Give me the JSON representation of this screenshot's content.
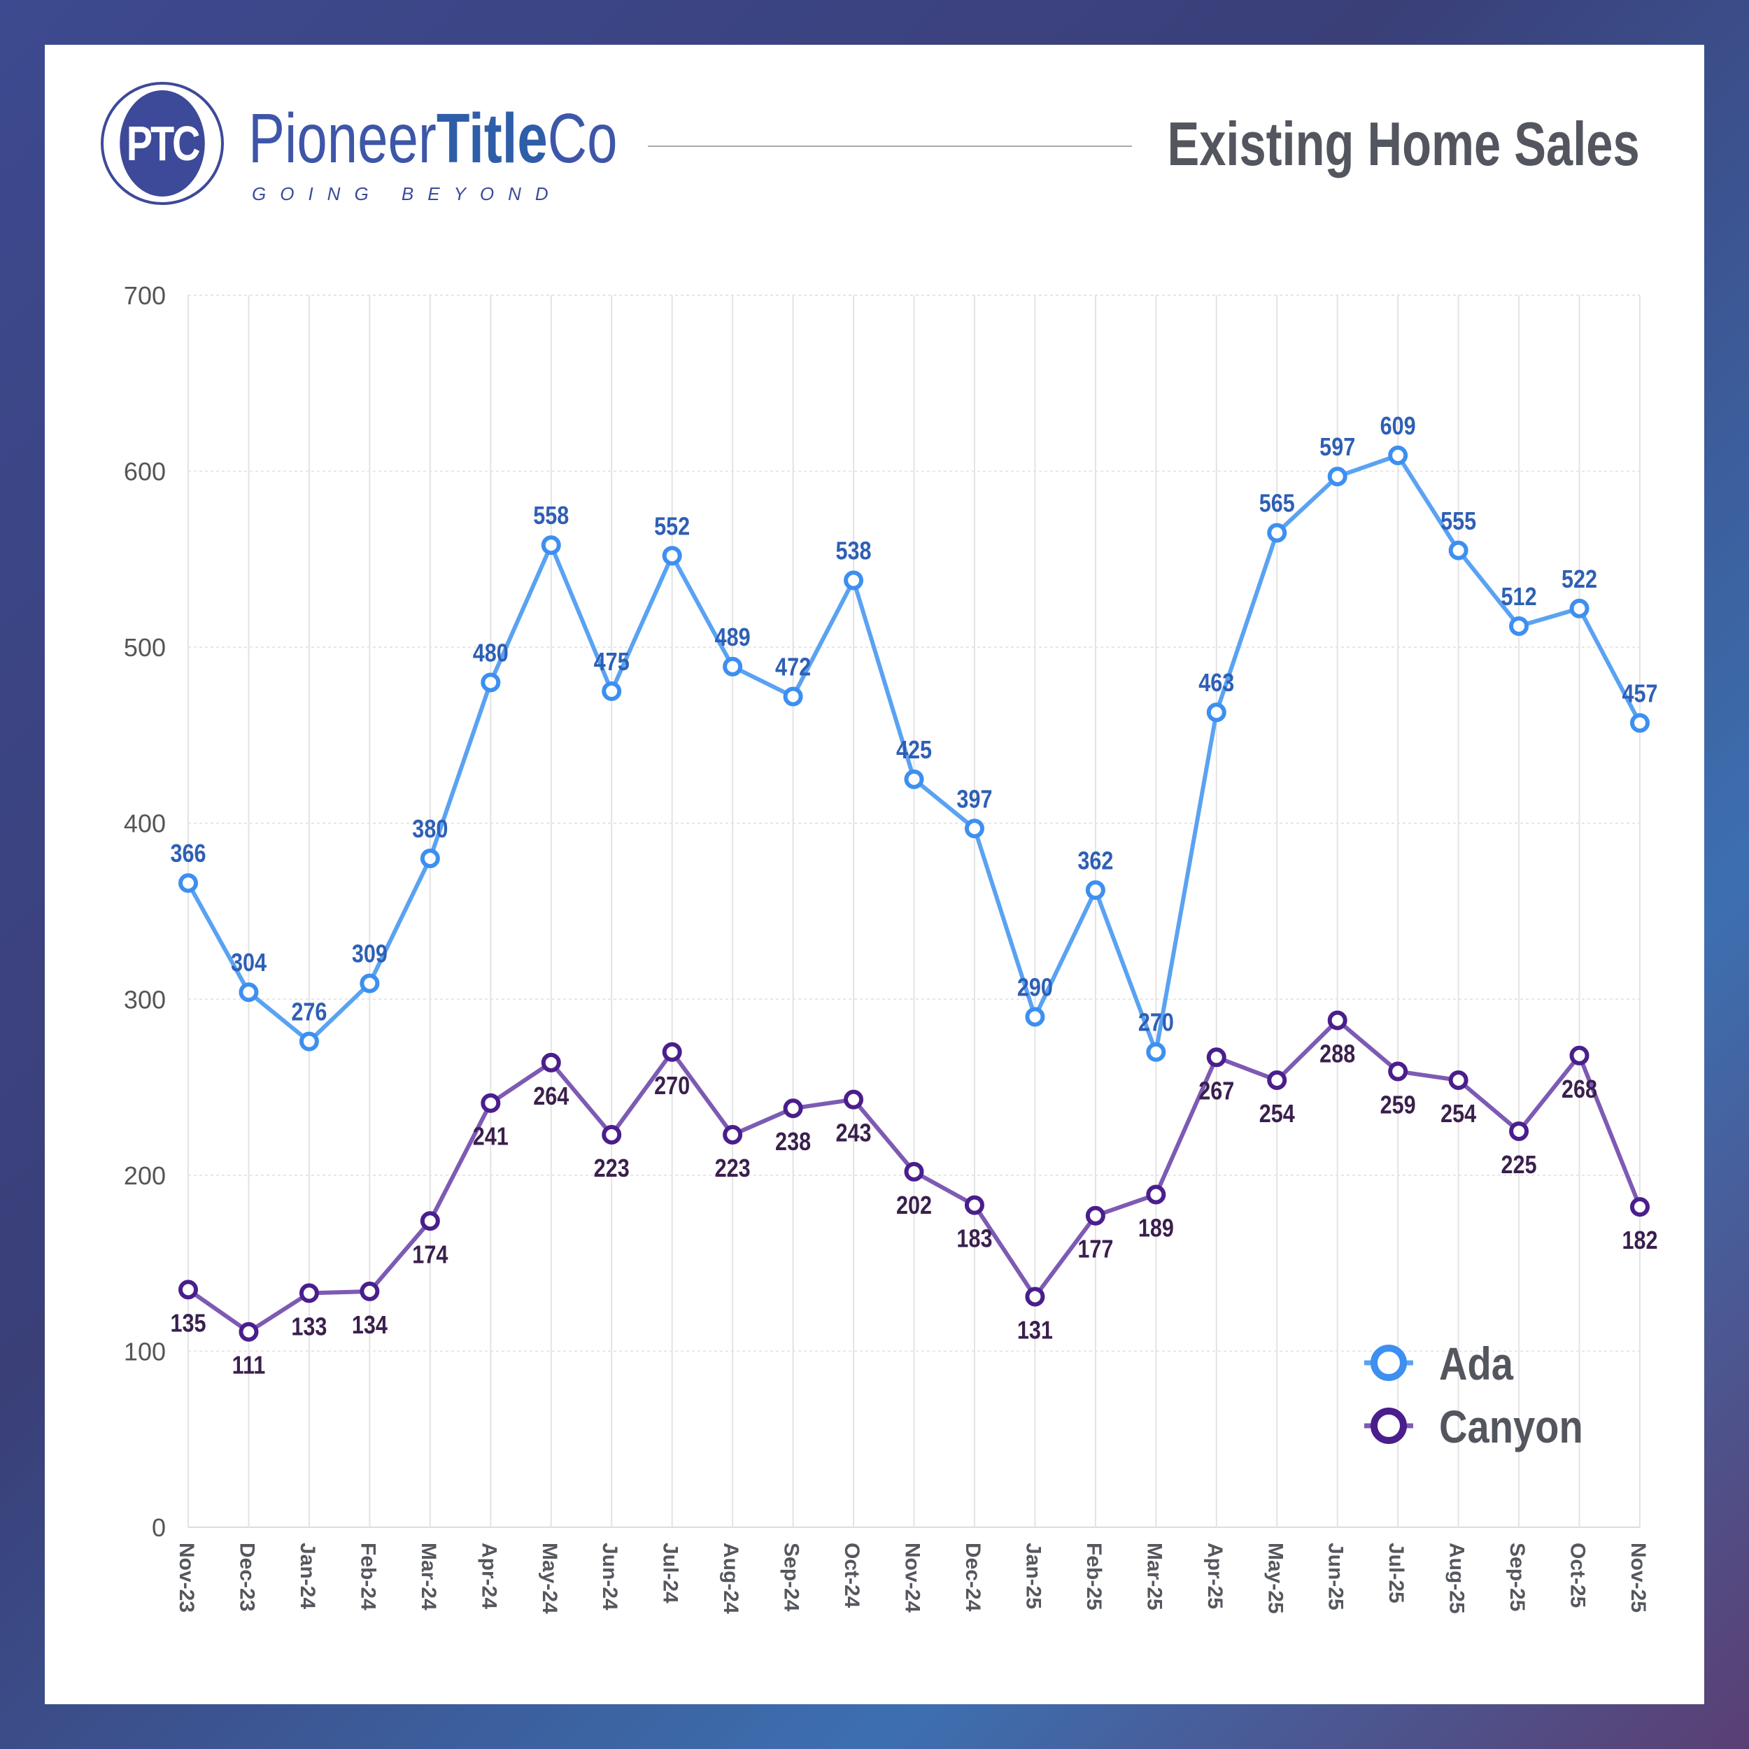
{
  "brand": {
    "logo_text": "PTC",
    "name_regular": "Pioneer",
    "name_bold": "Title",
    "name_end": "Co",
    "tagline": "GOING BEYOND"
  },
  "header": {
    "title": "Existing Home Sales"
  },
  "chart_data": {
    "type": "line",
    "title": "Existing Home Sales",
    "xlabel": "",
    "ylabel": "",
    "ylim": [
      0,
      700
    ],
    "yticks": [
      0,
      100,
      200,
      300,
      400,
      500,
      600,
      700
    ],
    "grid": true,
    "legend_position": "bottom-right",
    "categories": [
      "Nov-23",
      "Dec-23",
      "Jan-24",
      "Feb-24",
      "Mar-24",
      "Apr-24",
      "May-24",
      "Jun-24",
      "Jul-24",
      "Aug-24",
      "Sep-24",
      "Oct-24",
      "Nov-24",
      "Dec-24",
      "Jan-25",
      "Feb-25",
      "Mar-25",
      "Apr-25",
      "May-25",
      "Jun-25",
      "Jul-25",
      "Aug-25",
      "Sep-25",
      "Oct-25",
      "Nov-25"
    ],
    "series": [
      {
        "name": "Ada",
        "color": "#5aa2f2",
        "marker_color": "#3d8ff0",
        "label_color": "#2e5fb5",
        "label_pos": "above",
        "values": [
          366,
          304,
          276,
          309,
          380,
          480,
          558,
          475,
          552,
          489,
          472,
          538,
          425,
          397,
          290,
          362,
          270,
          463,
          565,
          597,
          609,
          555,
          512,
          522,
          457
        ]
      },
      {
        "name": "Canyon",
        "color": "#7d5ab3",
        "marker_color": "#4a1e8c",
        "label_color": "#3a1f4d",
        "label_pos": "below",
        "values": [
          135,
          111,
          133,
          134,
          174,
          241,
          264,
          223,
          270,
          223,
          238,
          243,
          202,
          183,
          131,
          177,
          189,
          267,
          254,
          288,
          259,
          254,
          225,
          268,
          182
        ]
      }
    ]
  }
}
